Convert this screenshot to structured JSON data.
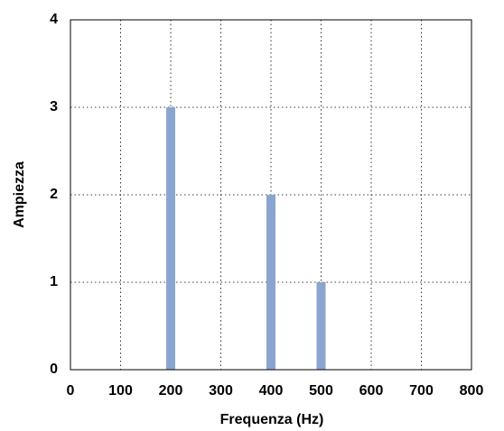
{
  "chart_data": {
    "type": "bar",
    "x_label": "Frequenza (Hz)",
    "y_label": "Ampiezza",
    "x": [
      200,
      400,
      500
    ],
    "values": [
      3,
      2,
      1
    ],
    "color": "#8aa6d0",
    "xlim": [
      0,
      800
    ],
    "xticks": [
      0,
      100,
      200,
      300,
      400,
      500,
      600,
      700,
      800
    ],
    "ylim": [
      0,
      4
    ],
    "yticks": [
      0,
      1,
      2,
      3,
      4
    ],
    "grid": true
  }
}
